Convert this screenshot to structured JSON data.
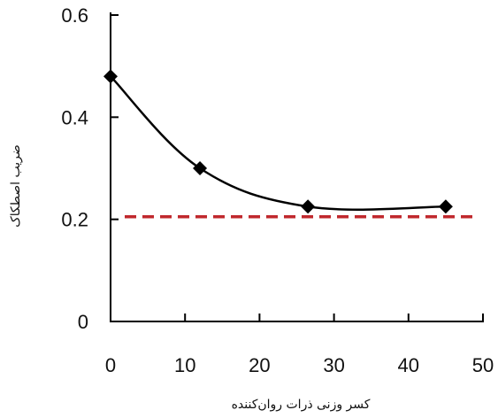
{
  "chart_data": {
    "type": "line",
    "xlabel": "کسر وزنی ذرات روان‌کننده",
    "ylabel": "ضریب اصطکاک",
    "xlim": [
      0,
      50
    ],
    "ylim": [
      0,
      0.6
    ],
    "x_ticks": [
      0,
      10,
      20,
      30,
      40,
      50
    ],
    "y_ticks": [
      0,
      0.2,
      0.4,
      0.6
    ],
    "x_tick_labels": [
      "0",
      "10",
      "20",
      "30",
      "40",
      "50"
    ],
    "y_tick_labels": [
      "0",
      "0.2",
      "0.4",
      "0.6"
    ],
    "grid": false,
    "series": [
      {
        "x": [
          0,
          12,
          26.5,
          45
        ],
        "y": [
          0.48,
          0.3,
          0.225,
          0.225
        ],
        "color": "#000000",
        "marker": "diamond",
        "smooth": true
      }
    ],
    "reference_lines": [
      {
        "orientation": "horizontal",
        "y": 0.205,
        "color": "#c0282d",
        "style": "dashed"
      }
    ]
  }
}
